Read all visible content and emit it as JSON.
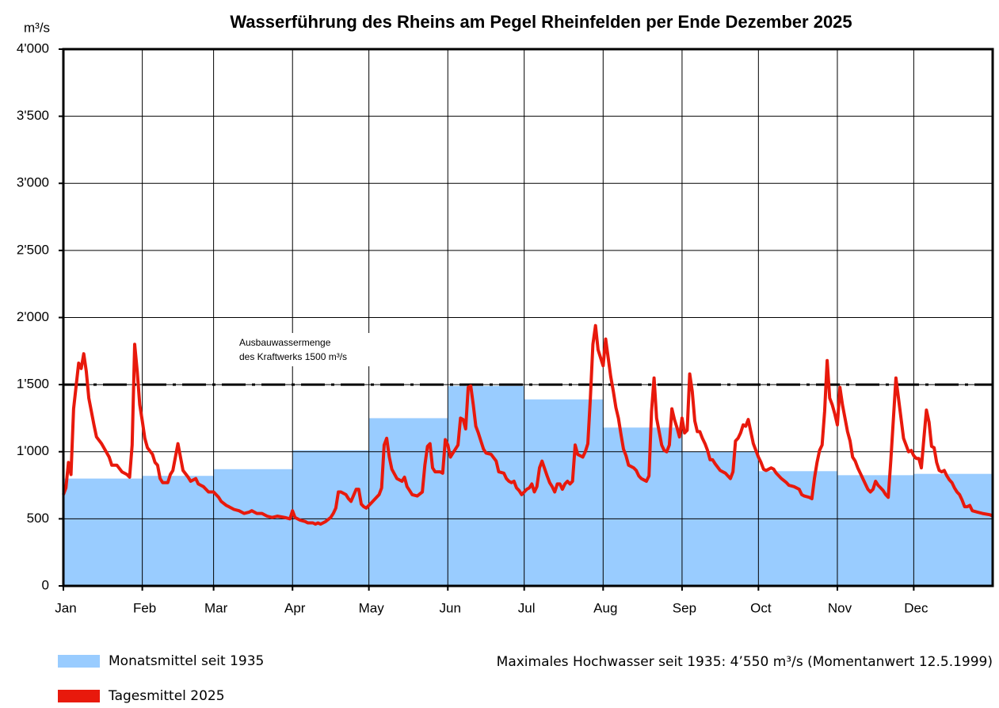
{
  "chart_data": {
    "type": "line",
    "title": "Wasserführung des Rheins am Pegel Rheinfelden per Ende Dezember 2025",
    "y_label": "m³/s",
    "xlim": [
      0,
      365
    ],
    "xticks": [
      {
        "value": 0,
        "label": "Jan"
      },
      {
        "value": 31,
        "label": "Feb"
      },
      {
        "value": 59,
        "label": "Mar"
      },
      {
        "value": 90,
        "label": "Apr"
      },
      {
        "value": 120,
        "label": "May"
      },
      {
        "value": 151,
        "label": "Jun"
      },
      {
        "value": 181,
        "label": "Jul"
      },
      {
        "value": 212,
        "label": "Aug"
      },
      {
        "value": 243,
        "label": "Sep"
      },
      {
        "value": 273,
        "label": "Oct"
      },
      {
        "value": 304,
        "label": "Nov"
      },
      {
        "value": 334,
        "label": "Dec"
      }
    ],
    "ylim": [
      0,
      4000
    ],
    "yticks": [
      0,
      500,
      {
        "value": 1000,
        "label": "1'000"
      },
      {
        "value": 1500,
        "label": "1'500"
      },
      {
        "value": 2000,
        "label": "2'000"
      },
      {
        "value": 2500,
        "label": "2'500"
      },
      {
        "value": 3000,
        "label": "3'000"
      },
      {
        "value": 3500,
        "label": "3'500"
      },
      {
        "value": 4000,
        "label": "4'000"
      }
    ],
    "grid": true,
    "reference_line": {
      "value": 1500,
      "label_lines": [
        "Ausbauwassermenge",
        "des Kraftwerks 1500 m³/s"
      ]
    },
    "note": "Maximales Hochwasser seit 1935: 4’550 m³/s (Momentanwert 12.5.1999)",
    "series": [
      {
        "name": "Monatsmittel seit 1935",
        "color": "#99ccff",
        "style": "step-area",
        "x": [
          0,
          31,
          59,
          90,
          120,
          151,
          181,
          212,
          243,
          273,
          304,
          334
        ],
        "values": [
          800,
          820,
          870,
          1010,
          1250,
          1490,
          1390,
          1180,
          1000,
          855,
          825,
          835
        ]
      },
      {
        "name": "Tagesmittel 2025",
        "color": "#e8190c",
        "style": "line",
        "x": [
          0,
          1,
          2,
          3,
          4,
          6,
          7,
          8,
          9,
          10,
          12,
          13,
          15,
          18,
          19,
          21,
          23,
          25,
          26,
          27,
          28,
          29,
          30,
          31,
          32,
          33,
          35,
          36,
          37,
          38,
          39,
          41,
          42,
          43,
          45,
          46,
          47,
          49,
          50,
          52,
          53,
          55,
          56,
          57,
          59,
          61,
          62,
          64,
          65,
          67,
          69,
          71,
          73,
          74,
          76,
          78,
          80,
          82,
          84,
          87,
          89,
          90,
          91,
          93,
          95,
          96,
          98,
          99,
          100,
          101,
          103,
          105,
          106,
          107,
          108,
          109,
          111,
          112,
          113,
          115,
          116,
          117,
          118,
          119,
          121,
          123,
          124,
          125,
          126,
          127,
          128,
          129,
          131,
          133,
          134,
          135,
          136,
          137,
          139,
          141,
          142,
          143,
          144,
          145,
          146,
          148,
          149,
          150,
          151,
          152,
          153,
          155,
          156,
          157,
          158,
          159,
          160,
          161,
          162,
          163,
          164,
          165,
          166,
          168,
          170,
          171,
          173,
          174,
          175,
          176,
          177,
          178,
          179,
          180,
          181,
          182,
          183,
          184,
          185,
          186,
          187,
          188,
          190,
          191,
          192,
          193,
          194,
          195,
          196,
          197,
          198,
          199,
          200,
          201,
          202,
          204,
          205,
          206,
          207,
          208,
          209,
          210,
          211,
          212,
          213,
          214,
          215,
          216,
          217,
          218,
          219,
          220,
          221,
          222,
          224,
          225,
          226,
          227,
          228,
          229,
          230,
          231,
          232,
          233,
          234,
          235,
          236,
          237,
          238,
          239,
          240,
          241,
          242,
          243,
          244,
          245,
          246,
          247,
          248,
          249,
          250,
          251,
          252,
          253,
          254,
          255,
          256,
          258,
          260,
          261,
          262,
          263,
          264,
          265,
          266,
          267,
          268,
          269,
          270,
          271,
          272,
          273,
          274,
          275,
          276,
          277,
          278,
          279,
          280,
          282,
          284,
          285,
          287,
          289,
          290,
          291,
          293,
          294,
          295,
          296,
          297,
          298,
          299,
          300,
          301,
          302,
          303,
          304,
          305,
          306,
          307,
          308,
          309,
          310,
          311,
          312,
          313,
          314,
          315,
          316,
          317,
          318,
          319,
          320,
          321,
          322,
          323,
          324,
          325,
          327,
          328,
          329,
          330,
          331,
          332,
          333,
          334,
          335,
          336,
          337,
          338,
          339,
          340,
          341,
          342,
          343,
          344,
          345,
          346,
          347,
          348,
          349,
          350,
          351,
          352,
          353,
          354,
          355,
          356,
          357,
          359,
          361,
          364,
          365
        ],
        "values": [
          680,
          730,
          920,
          830,
          1320,
          1660,
          1620,
          1730,
          1600,
          1400,
          1200,
          1110,
          1060,
          960,
          900,
          900,
          850,
          830,
          810,
          1050,
          1800,
          1600,
          1350,
          1230,
          1100,
          1030,
          980,
          920,
          900,
          800,
          770,
          770,
          830,
          860,
          1060,
          960,
          860,
          810,
          780,
          800,
          760,
          740,
          720,
          700,
          700,
          660,
          630,
          600,
          590,
          570,
          560,
          540,
          550,
          560,
          540,
          540,
          520,
          510,
          520,
          510,
          500,
          560,
          510,
          490,
          480,
          470,
          470,
          460,
          470,
          460,
          480,
          510,
          540,
          580,
          700,
          700,
          680,
          650,
          630,
          720,
          720,
          610,
          590,
          580,
          620,
          660,
          680,
          730,
          1050,
          1100,
          960,
          870,
          800,
          780,
          810,
          740,
          710,
          680,
          670,
          700,
          900,
          1040,
          1060,
          880,
          850,
          850,
          840,
          1090,
          1050,
          960,
          990,
          1050,
          1250,
          1240,
          1170,
          1480,
          1490,
          1350,
          1190,
          1140,
          1080,
          1020,
          990,
          980,
          930,
          850,
          840,
          800,
          780,
          770,
          780,
          730,
          710,
          680,
          700,
          720,
          730,
          760,
          700,
          740,
          880,
          930,
          820,
          770,
          740,
          700,
          760,
          760,
          720,
          760,
          780,
          760,
          780,
          1050,
          980,
          960,
          1000,
          1060,
          1400,
          1800,
          1940,
          1760,
          1700,
          1640,
          1840,
          1700,
          1560,
          1450,
          1330,
          1250,
          1130,
          1020,
          970,
          900,
          880,
          860,
          820,
          800,
          790,
          780,
          820,
          1300,
          1550,
          1250,
          1150,
          1050,
          1010,
          1000,
          1050,
          1320,
          1240,
          1180,
          1110,
          1250,
          1140,
          1160,
          1580,
          1450,
          1230,
          1150,
          1150,
          1100,
          1060,
          1010,
          940,
          940,
          910,
          860,
          840,
          820,
          800,
          850,
          1080,
          1100,
          1140,
          1200,
          1190,
          1240,
          1150,
          1060,
          1010,
          960,
          920,
          870,
          860,
          870,
          880,
          870,
          840,
          800,
          770,
          750,
          740,
          720,
          680,
          670,
          660,
          650,
          800,
          920,
          1010,
          1050,
          1300,
          1680,
          1400,
          1350,
          1280,
          1200,
          1480,
          1350,
          1250,
          1150,
          1080,
          960,
          930,
          880,
          840,
          800,
          760,
          720,
          700,
          720,
          780,
          750,
          730,
          710,
          680,
          660,
          940,
          1550,
          1400,
          1250,
          1100,
          1050,
          1000,
          1010,
          970,
          950,
          950,
          880,
          1100,
          1310,
          1220,
          1040,
          1030,
          920,
          860,
          850,
          860,
          820,
          790,
          770,
          730,
          700,
          680,
          640,
          590,
          590,
          600,
          560,
          550,
          540,
          530,
          520
        ]
      }
    ]
  }
}
